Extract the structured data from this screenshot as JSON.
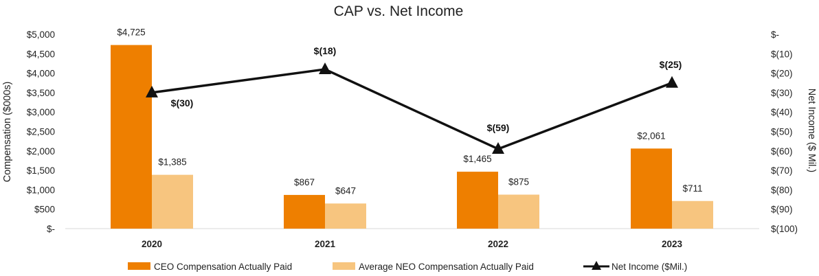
{
  "chart_data": {
    "type": "bar",
    "title": "CAP vs. Net Income",
    "categories": [
      "2020",
      "2021",
      "2022",
      "2023"
    ],
    "series": [
      {
        "name": "CEO Compensation Actually Paid",
        "type": "bar",
        "axis": "left",
        "color": "#EE7F00",
        "values": [
          4725,
          867,
          1465,
          2061
        ],
        "labels": [
          "$4,725",
          "$867",
          "$1,465",
          "$2,061"
        ]
      },
      {
        "name": "Average NEO Compensation Actually Paid",
        "type": "bar",
        "axis": "left",
        "color": "#F7C57F",
        "values": [
          1385,
          647,
          875,
          711
        ],
        "labels": [
          "$1,385",
          "$647",
          "$875",
          "$711"
        ]
      },
      {
        "name": "Net Income ($Mil.)",
        "type": "line",
        "axis": "right",
        "color": "#111111",
        "marker": "triangle",
        "values": [
          -30,
          -18,
          -59,
          -25
        ],
        "labels": [
          "$(30)",
          "$(18)",
          "$(59)",
          "$(25)"
        ]
      }
    ],
    "ylabel": "Compensation ($000s)",
    "ylim": [
      0,
      5000
    ],
    "yticks": [
      "$-",
      "$500",
      "$1,000",
      "$1,500",
      "$2,000",
      "$2,500",
      "$3,000",
      "$3,500",
      "$4,000",
      "$4,500",
      "$5,000"
    ],
    "y2label": "Net Income ($ Mil.)",
    "y2lim": [
      -100,
      0
    ],
    "y2ticks": [
      "$-",
      "$(10)",
      "$(20)",
      "$(30)",
      "$(40)",
      "$(50)",
      "$(60)",
      "$(70)",
      "$(80)",
      "$(90)",
      "$(100)"
    ],
    "grid": false,
    "legend": "bottom"
  }
}
